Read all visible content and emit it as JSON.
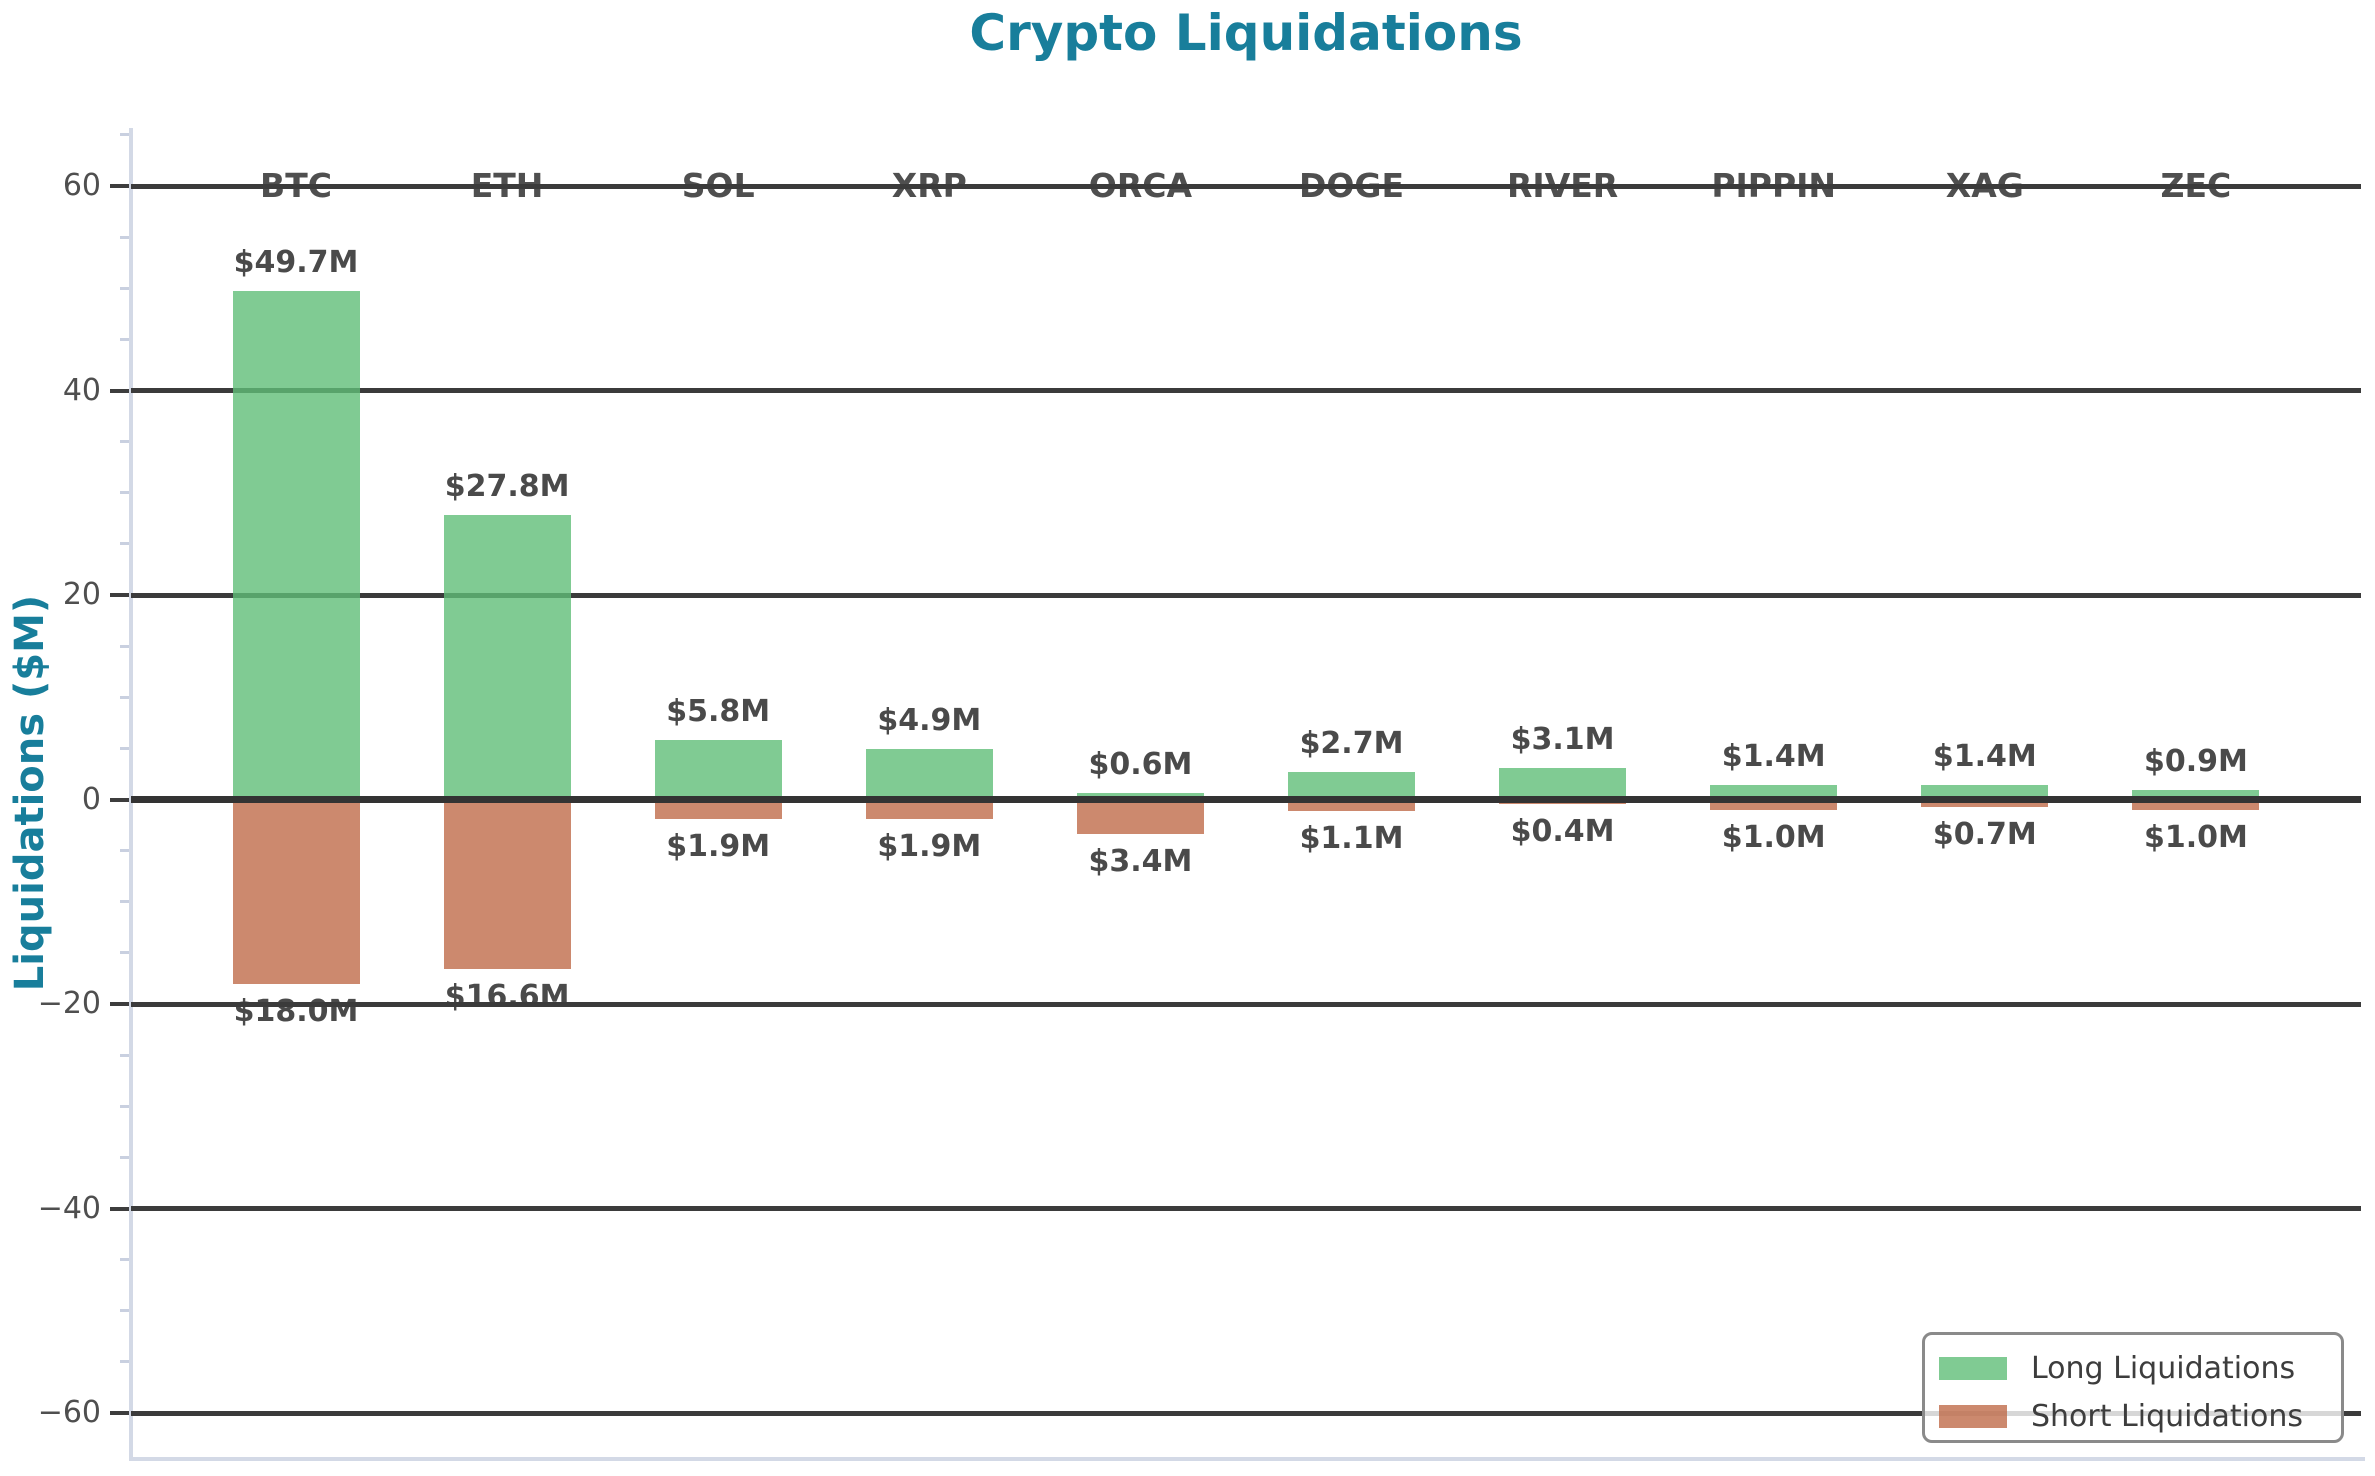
{
  "chart_data": {
    "type": "bar",
    "title": "Crypto Liquidations",
    "ylabel": "Liquidations ($M)",
    "categories": [
      "BTC",
      "ETH",
      "SOL",
      "XRP",
      "ORCA",
      "DOGE",
      "RIVER",
      "PIPPIN",
      "XAG",
      "ZEC"
    ],
    "series": [
      {
        "name": "Long Liquidations",
        "direction": "up",
        "values": [
          49.7,
          27.8,
          5.8,
          4.9,
          0.6,
          2.7,
          3.1,
          1.4,
          1.4,
          0.9
        ],
        "value_labels": [
          "$49.7M",
          "$27.8M",
          "$5.8M",
          "$4.9M",
          "$0.6M",
          "$2.7M",
          "$3.1M",
          "$1.4M",
          "$1.4M",
          "$0.9M"
        ],
        "color": "rgba(96,190,120,0.8)"
      },
      {
        "name": "Short Liquidations",
        "direction": "down",
        "values": [
          18.0,
          16.6,
          1.9,
          1.9,
          3.4,
          1.1,
          0.4,
          1.0,
          0.7,
          1.0
        ],
        "value_labels": [
          "$18.0M",
          "$16.6M",
          "$1.9M",
          "$1.9M",
          "$3.4M",
          "$1.1M",
          "$0.4M",
          "$1.0M",
          "$0.7M",
          "$1.0M"
        ],
        "color": "rgba(191,107,74,0.8)"
      }
    ],
    "yticks": [
      {
        "value": 60,
        "label": "60"
      },
      {
        "value": 40,
        "label": "40"
      },
      {
        "value": 20,
        "label": "20"
      },
      {
        "value": 0,
        "label": "0"
      },
      {
        "value": -20,
        "label": "−20"
      },
      {
        "value": -40,
        "label": "−40"
      },
      {
        "value": -60,
        "label": "−60"
      }
    ],
    "ylim": [
      -64.7,
      65.7
    ],
    "grid": true,
    "legend": {
      "position": "lower right",
      "entries": [
        {
          "label": "Long Liquidations",
          "color": "rgba(96,190,120,0.8)"
        },
        {
          "label": "Short Liquidations",
          "color": "rgba(191,107,74,0.8)"
        }
      ]
    },
    "colors": {
      "title": "#187E9B",
      "axis_label": "#187E9B",
      "grid": "#3B3B3B",
      "zero_line": "#333333",
      "tick_label": "#4F4F4F",
      "minor_tick": "#C9D0E0",
      "major_tick": "#3D3D3D",
      "bar_label": "#4A4A4A",
      "category_label": "#4F4F4F",
      "spine": "#D3D9E6",
      "legend_border": "#8A8A8A",
      "legend_text": "#3D3D3D"
    }
  }
}
